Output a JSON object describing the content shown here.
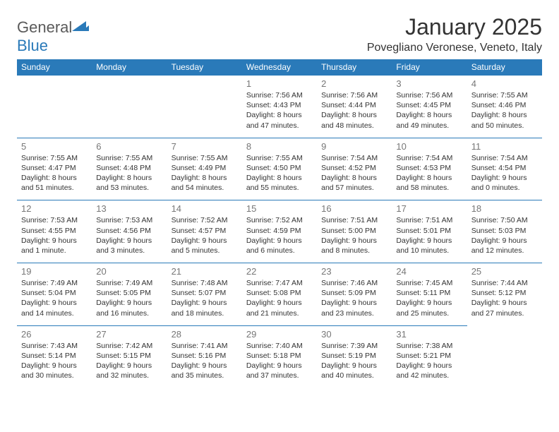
{
  "logo": {
    "text_general": "General",
    "text_blue": "Blue",
    "icon_color": "#2a7ab9"
  },
  "header": {
    "month_title": "January 2025",
    "location": "Povegliano Veronese, Veneto, Italy"
  },
  "colors": {
    "header_bg": "#2a7ab9",
    "header_text": "#ffffff",
    "cell_border": "#2a7ab9",
    "body_text": "#333333",
    "daynum_text": "#777777",
    "logo_gray": "#5a5a5a",
    "background": "#ffffff"
  },
  "typography": {
    "month_title_fontsize": 32,
    "location_fontsize": 16,
    "weekday_fontsize": 12,
    "daynum_fontsize": 13,
    "dayinfo_fontsize": 10.5,
    "font_family": "Arial"
  },
  "calendar": {
    "type": "table",
    "weekdays": [
      "Sunday",
      "Monday",
      "Tuesday",
      "Wednesday",
      "Thursday",
      "Friday",
      "Saturday"
    ],
    "weeks": [
      [
        null,
        null,
        null,
        {
          "num": "1",
          "lines": [
            "Sunrise: 7:56 AM",
            "Sunset: 4:43 PM",
            "Daylight: 8 hours",
            "and 47 minutes."
          ]
        },
        {
          "num": "2",
          "lines": [
            "Sunrise: 7:56 AM",
            "Sunset: 4:44 PM",
            "Daylight: 8 hours",
            "and 48 minutes."
          ]
        },
        {
          "num": "3",
          "lines": [
            "Sunrise: 7:56 AM",
            "Sunset: 4:45 PM",
            "Daylight: 8 hours",
            "and 49 minutes."
          ]
        },
        {
          "num": "4",
          "lines": [
            "Sunrise: 7:55 AM",
            "Sunset: 4:46 PM",
            "Daylight: 8 hours",
            "and 50 minutes."
          ]
        }
      ],
      [
        {
          "num": "5",
          "lines": [
            "Sunrise: 7:55 AM",
            "Sunset: 4:47 PM",
            "Daylight: 8 hours",
            "and 51 minutes."
          ]
        },
        {
          "num": "6",
          "lines": [
            "Sunrise: 7:55 AM",
            "Sunset: 4:48 PM",
            "Daylight: 8 hours",
            "and 53 minutes."
          ]
        },
        {
          "num": "7",
          "lines": [
            "Sunrise: 7:55 AM",
            "Sunset: 4:49 PM",
            "Daylight: 8 hours",
            "and 54 minutes."
          ]
        },
        {
          "num": "8",
          "lines": [
            "Sunrise: 7:55 AM",
            "Sunset: 4:50 PM",
            "Daylight: 8 hours",
            "and 55 minutes."
          ]
        },
        {
          "num": "9",
          "lines": [
            "Sunrise: 7:54 AM",
            "Sunset: 4:52 PM",
            "Daylight: 8 hours",
            "and 57 minutes."
          ]
        },
        {
          "num": "10",
          "lines": [
            "Sunrise: 7:54 AM",
            "Sunset: 4:53 PM",
            "Daylight: 8 hours",
            "and 58 minutes."
          ]
        },
        {
          "num": "11",
          "lines": [
            "Sunrise: 7:54 AM",
            "Sunset: 4:54 PM",
            "Daylight: 9 hours",
            "and 0 minutes."
          ]
        }
      ],
      [
        {
          "num": "12",
          "lines": [
            "Sunrise: 7:53 AM",
            "Sunset: 4:55 PM",
            "Daylight: 9 hours",
            "and 1 minute."
          ]
        },
        {
          "num": "13",
          "lines": [
            "Sunrise: 7:53 AM",
            "Sunset: 4:56 PM",
            "Daylight: 9 hours",
            "and 3 minutes."
          ]
        },
        {
          "num": "14",
          "lines": [
            "Sunrise: 7:52 AM",
            "Sunset: 4:57 PM",
            "Daylight: 9 hours",
            "and 5 minutes."
          ]
        },
        {
          "num": "15",
          "lines": [
            "Sunrise: 7:52 AM",
            "Sunset: 4:59 PM",
            "Daylight: 9 hours",
            "and 6 minutes."
          ]
        },
        {
          "num": "16",
          "lines": [
            "Sunrise: 7:51 AM",
            "Sunset: 5:00 PM",
            "Daylight: 9 hours",
            "and 8 minutes."
          ]
        },
        {
          "num": "17",
          "lines": [
            "Sunrise: 7:51 AM",
            "Sunset: 5:01 PM",
            "Daylight: 9 hours",
            "and 10 minutes."
          ]
        },
        {
          "num": "18",
          "lines": [
            "Sunrise: 7:50 AM",
            "Sunset: 5:03 PM",
            "Daylight: 9 hours",
            "and 12 minutes."
          ]
        }
      ],
      [
        {
          "num": "19",
          "lines": [
            "Sunrise: 7:49 AM",
            "Sunset: 5:04 PM",
            "Daylight: 9 hours",
            "and 14 minutes."
          ]
        },
        {
          "num": "20",
          "lines": [
            "Sunrise: 7:49 AM",
            "Sunset: 5:05 PM",
            "Daylight: 9 hours",
            "and 16 minutes."
          ]
        },
        {
          "num": "21",
          "lines": [
            "Sunrise: 7:48 AM",
            "Sunset: 5:07 PM",
            "Daylight: 9 hours",
            "and 18 minutes."
          ]
        },
        {
          "num": "22",
          "lines": [
            "Sunrise: 7:47 AM",
            "Sunset: 5:08 PM",
            "Daylight: 9 hours",
            "and 21 minutes."
          ]
        },
        {
          "num": "23",
          "lines": [
            "Sunrise: 7:46 AM",
            "Sunset: 5:09 PM",
            "Daylight: 9 hours",
            "and 23 minutes."
          ]
        },
        {
          "num": "24",
          "lines": [
            "Sunrise: 7:45 AM",
            "Sunset: 5:11 PM",
            "Daylight: 9 hours",
            "and 25 minutes."
          ]
        },
        {
          "num": "25",
          "lines": [
            "Sunrise: 7:44 AM",
            "Sunset: 5:12 PM",
            "Daylight: 9 hours",
            "and 27 minutes."
          ]
        }
      ],
      [
        {
          "num": "26",
          "lines": [
            "Sunrise: 7:43 AM",
            "Sunset: 5:14 PM",
            "Daylight: 9 hours",
            "and 30 minutes."
          ]
        },
        {
          "num": "27",
          "lines": [
            "Sunrise: 7:42 AM",
            "Sunset: 5:15 PM",
            "Daylight: 9 hours",
            "and 32 minutes."
          ]
        },
        {
          "num": "28",
          "lines": [
            "Sunrise: 7:41 AM",
            "Sunset: 5:16 PM",
            "Daylight: 9 hours",
            "and 35 minutes."
          ]
        },
        {
          "num": "29",
          "lines": [
            "Sunrise: 7:40 AM",
            "Sunset: 5:18 PM",
            "Daylight: 9 hours",
            "and 37 minutes."
          ]
        },
        {
          "num": "30",
          "lines": [
            "Sunrise: 7:39 AM",
            "Sunset: 5:19 PM",
            "Daylight: 9 hours",
            "and 40 minutes."
          ]
        },
        {
          "num": "31",
          "lines": [
            "Sunrise: 7:38 AM",
            "Sunset: 5:21 PM",
            "Daylight: 9 hours",
            "and 42 minutes."
          ]
        },
        null
      ]
    ]
  }
}
